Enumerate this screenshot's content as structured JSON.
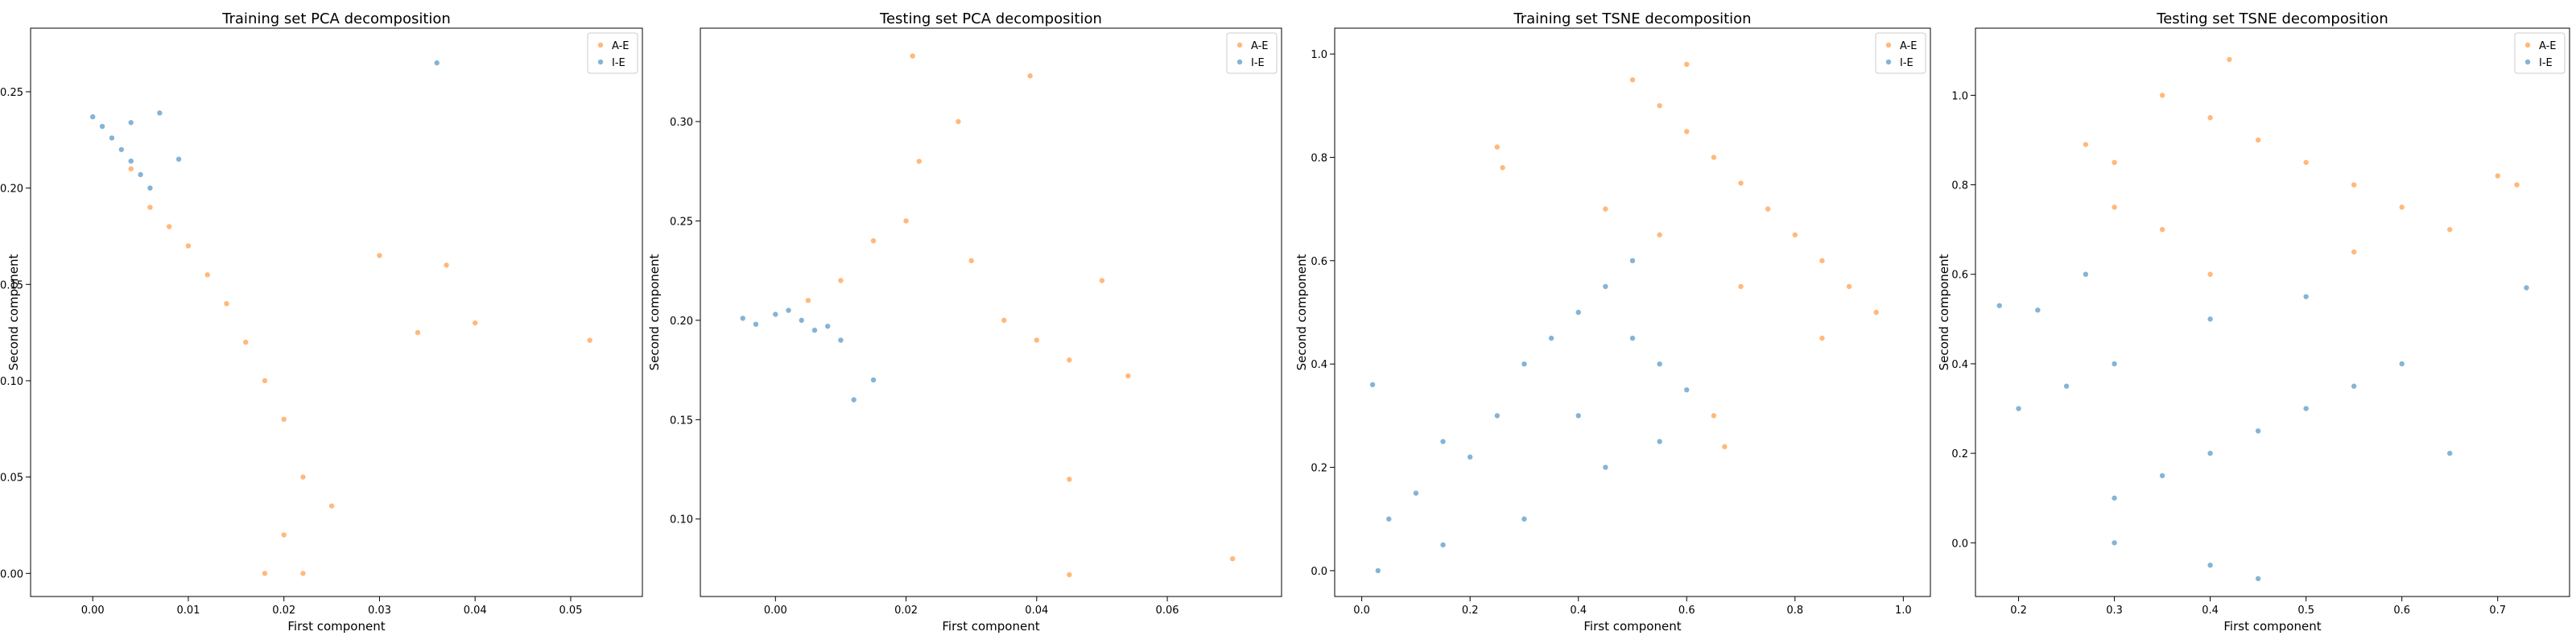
{
  "colors": {
    "a_e": "#ff7f0e",
    "i_e": "#1f77b4"
  },
  "chart_data": [
    {
      "type": "scatter",
      "title": "Training set PCA decomposition",
      "xlabel": "First component",
      "ylabel": "Second component",
      "xlim": [
        -0.0065,
        0.0575
      ],
      "ylim": [
        -0.012,
        0.283
      ],
      "xticks": [
        0.0,
        0.01,
        0.02,
        0.03,
        0.04,
        0.05
      ],
      "xtick_labels": [
        "0.00",
        "0.01",
        "0.02",
        "0.03",
        "0.04",
        "0.05"
      ],
      "yticks": [
        0.0,
        0.05,
        0.1,
        0.15,
        0.2,
        0.25
      ],
      "ytick_labels": [
        "0.00",
        "0.05",
        "0.10",
        "0.15",
        "0.20",
        "0.25"
      ],
      "legend": {
        "position": "top-right",
        "entries": [
          "A-E",
          "I-E"
        ]
      },
      "series": [
        {
          "name": "A-E",
          "color": "#ff7f0e",
          "points": [
            [
              0.004,
              0.21
            ],
            [
              0.006,
              0.19
            ],
            [
              0.008,
              0.18
            ],
            [
              0.01,
              0.17
            ],
            [
              0.012,
              0.155
            ],
            [
              0.014,
              0.14
            ],
            [
              0.016,
              0.12
            ],
            [
              0.018,
              0.1
            ],
            [
              0.02,
              0.08
            ],
            [
              0.022,
              0.05
            ],
            [
              0.025,
              0.035
            ],
            [
              0.02,
              0.02
            ],
            [
              0.018,
              0.0
            ],
            [
              0.022,
              0.0
            ],
            [
              0.03,
              0.165
            ],
            [
              0.037,
              0.16
            ],
            [
              0.034,
              0.125
            ],
            [
              0.04,
              0.13
            ],
            [
              0.052,
              0.121
            ]
          ]
        },
        {
          "name": "I-E",
          "color": "#1f77b4",
          "points": [
            [
              0.0,
              0.237
            ],
            [
              0.001,
              0.232
            ],
            [
              0.002,
              0.226
            ],
            [
              0.003,
              0.22
            ],
            [
              0.004,
              0.214
            ],
            [
              0.005,
              0.207
            ],
            [
              0.006,
              0.2
            ],
            [
              0.004,
              0.234
            ],
            [
              0.007,
              0.239
            ],
            [
              0.009,
              0.215
            ],
            [
              0.036,
              0.265
            ]
          ]
        }
      ]
    },
    {
      "type": "scatter",
      "title": "Testing set PCA decomposition",
      "xlabel": "First component",
      "ylabel": "Second component",
      "xlim": [
        -0.0115,
        0.0775
      ],
      "ylim": [
        0.061,
        0.347
      ],
      "xticks": [
        0.0,
        0.02,
        0.04,
        0.06
      ],
      "xtick_labels": [
        "0.00",
        "0.02",
        "0.04",
        "0.06"
      ],
      "yticks": [
        0.1,
        0.15,
        0.2,
        0.25,
        0.3
      ],
      "ytick_labels": [
        "0.10",
        "0.15",
        "0.20",
        "0.25",
        "0.30"
      ],
      "legend": {
        "position": "top-right",
        "entries": [
          "A-E",
          "I-E"
        ]
      },
      "series": [
        {
          "name": "A-E",
          "color": "#ff7f0e",
          "points": [
            [
              0.005,
              0.21
            ],
            [
              0.01,
              0.22
            ],
            [
              0.015,
              0.24
            ],
            [
              0.02,
              0.25
            ],
            [
              0.022,
              0.28
            ],
            [
              0.021,
              0.333
            ],
            [
              0.028,
              0.3
            ],
            [
              0.039,
              0.323
            ],
            [
              0.03,
              0.23
            ],
            [
              0.035,
              0.2
            ],
            [
              0.04,
              0.19
            ],
            [
              0.045,
              0.18
            ],
            [
              0.05,
              0.22
            ],
            [
              0.054,
              0.172
            ],
            [
              0.045,
              0.12
            ],
            [
              0.045,
              0.072
            ],
            [
              0.07,
              0.08
            ]
          ]
        },
        {
          "name": "I-E",
          "color": "#1f77b4",
          "points": [
            [
              -0.005,
              0.201
            ],
            [
              -0.003,
              0.198
            ],
            [
              0.0,
              0.203
            ],
            [
              0.002,
              0.205
            ],
            [
              0.004,
              0.2
            ],
            [
              0.006,
              0.195
            ],
            [
              0.008,
              0.197
            ],
            [
              0.01,
              0.19
            ],
            [
              0.015,
              0.17
            ],
            [
              0.012,
              0.16
            ]
          ]
        }
      ]
    },
    {
      "type": "scatter",
      "title": "Training set TSNE decomposition",
      "xlabel": "First component",
      "ylabel": "Second component",
      "xlim": [
        -0.05,
        1.05
      ],
      "ylim": [
        -0.05,
        1.05
      ],
      "xticks": [
        0.0,
        0.2,
        0.4,
        0.6,
        0.8,
        1.0
      ],
      "xtick_labels": [
        "0.0",
        "0.2",
        "0.4",
        "0.6",
        "0.8",
        "1.0"
      ],
      "yticks": [
        0.0,
        0.2,
        0.4,
        0.6,
        0.8,
        1.0
      ],
      "ytick_labels": [
        "0.0",
        "0.2",
        "0.4",
        "0.6",
        "0.8",
        "1.0"
      ],
      "legend": {
        "position": "top-right",
        "entries": [
          "A-E",
          "I-E"
        ]
      },
      "series": [
        {
          "name": "A-E",
          "color": "#ff7f0e",
          "points": [
            [
              0.5,
              0.95
            ],
            [
              0.55,
              0.9
            ],
            [
              0.6,
              0.85
            ],
            [
              0.65,
              0.8
            ],
            [
              0.7,
              0.75
            ],
            [
              0.75,
              0.7
            ],
            [
              0.8,
              0.65
            ],
            [
              0.85,
              0.6
            ],
            [
              0.9,
              0.55
            ],
            [
              0.95,
              0.5
            ],
            [
              0.6,
              0.98
            ],
            [
              0.45,
              0.7
            ],
            [
              0.55,
              0.65
            ],
            [
              0.7,
              0.55
            ],
            [
              0.85,
              0.45
            ],
            [
              0.25,
              0.82
            ],
            [
              0.26,
              0.78
            ],
            [
              0.65,
              0.3
            ],
            [
              0.67,
              0.24
            ]
          ]
        },
        {
          "name": "I-E",
          "color": "#1f77b4",
          "points": [
            [
              0.2,
              0.22
            ],
            [
              0.15,
              0.25
            ],
            [
              0.25,
              0.3
            ],
            [
              0.3,
              0.4
            ],
            [
              0.35,
              0.45
            ],
            [
              0.4,
              0.5
            ],
            [
              0.45,
              0.55
            ],
            [
              0.5,
              0.45
            ],
            [
              0.55,
              0.4
            ],
            [
              0.6,
              0.35
            ],
            [
              0.1,
              0.15
            ],
            [
              0.05,
              0.1
            ],
            [
              0.02,
              0.36
            ],
            [
              0.03,
              0.0
            ],
            [
              0.15,
              0.05
            ],
            [
              0.5,
              0.6
            ],
            [
              0.55,
              0.25
            ],
            [
              0.4,
              0.3
            ],
            [
              0.3,
              0.1
            ],
            [
              0.45,
              0.2
            ]
          ]
        }
      ]
    },
    {
      "type": "scatter",
      "title": "Testing set TSNE decomposition",
      "xlabel": "First component",
      "ylabel": "Second component",
      "xlim": [
        0.155,
        0.775
      ],
      "ylim": [
        -0.12,
        1.15
      ],
      "xticks": [
        0.2,
        0.3,
        0.4,
        0.5,
        0.6,
        0.7
      ],
      "xtick_labels": [
        "0.2",
        "0.3",
        "0.4",
        "0.5",
        "0.6",
        "0.7"
      ],
      "yticks": [
        0.0,
        0.2,
        0.4,
        0.6,
        0.8,
        1.0
      ],
      "ytick_labels": [
        "0.0",
        "0.2",
        "0.4",
        "0.6",
        "0.8",
        "1.0"
      ],
      "legend": {
        "position": "top-right",
        "entries": [
          "A-E",
          "I-E"
        ]
      },
      "series": [
        {
          "name": "A-E",
          "color": "#ff7f0e",
          "points": [
            [
              0.35,
              1.0
            ],
            [
              0.4,
              0.95
            ],
            [
              0.45,
              0.9
            ],
            [
              0.5,
              0.85
            ],
            [
              0.55,
              0.8
            ],
            [
              0.6,
              0.75
            ],
            [
              0.65,
              0.7
            ],
            [
              0.7,
              0.82
            ],
            [
              0.72,
              0.8
            ],
            [
              0.42,
              1.08
            ],
            [
              0.3,
              0.85
            ],
            [
              0.35,
              0.7
            ],
            [
              0.4,
              0.6
            ],
            [
              0.55,
              0.65
            ],
            [
              0.27,
              0.89
            ],
            [
              0.3,
              0.75
            ]
          ]
        },
        {
          "name": "I-E",
          "color": "#1f77b4",
          "points": [
            [
              0.3,
              0.1
            ],
            [
              0.35,
              0.15
            ],
            [
              0.4,
              0.2
            ],
            [
              0.45,
              0.25
            ],
            [
              0.5,
              0.3
            ],
            [
              0.55,
              0.35
            ],
            [
              0.6,
              0.4
            ],
            [
              0.65,
              0.2
            ],
            [
              0.3,
              0.4
            ],
            [
              0.25,
              0.35
            ],
            [
              0.2,
              0.3
            ],
            [
              0.18,
              0.53
            ],
            [
              0.22,
              0.52
            ],
            [
              0.4,
              -0.05
            ],
            [
              0.45,
              -0.08
            ],
            [
              0.73,
              0.57
            ],
            [
              0.27,
              0.6
            ],
            [
              0.4,
              0.5
            ],
            [
              0.5,
              0.55
            ],
            [
              0.3,
              0.0
            ]
          ]
        }
      ]
    }
  ]
}
